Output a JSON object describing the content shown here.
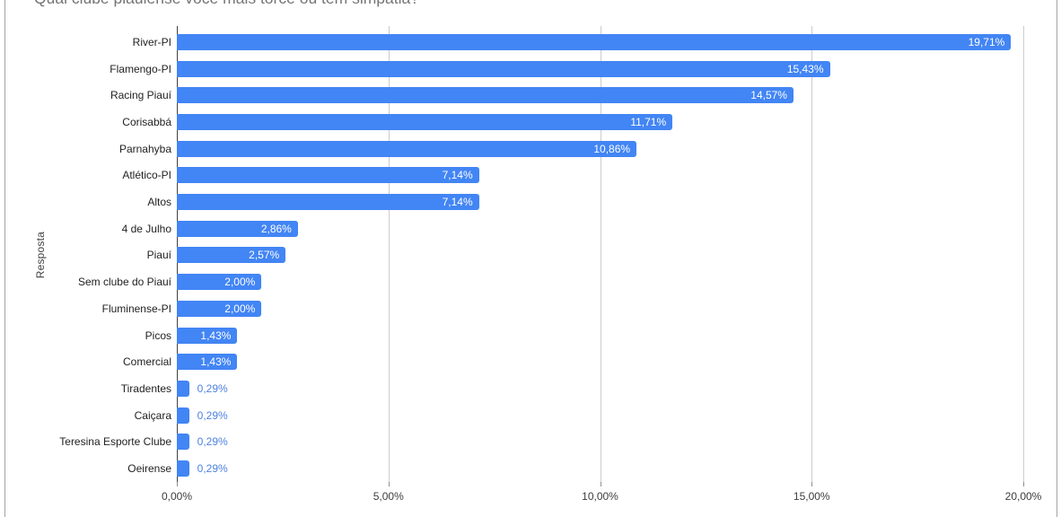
{
  "chart_data": {
    "type": "bar",
    "orientation": "horizontal",
    "title": "Qual clube piauiense você mais torce ou tem simpatia?",
    "ylabel": "Resposta",
    "xlabel": "",
    "xlim": [
      0,
      20
    ],
    "grid": true,
    "legend_position": "none",
    "x_ticks": [
      {
        "value": 0,
        "label": "0,00%"
      },
      {
        "value": 5,
        "label": "5,00%"
      },
      {
        "value": 10,
        "label": "10,00%"
      },
      {
        "value": 15,
        "label": "15,00%"
      },
      {
        "value": 20,
        "label": "20,00%"
      }
    ],
    "bars": [
      {
        "category": "River-PI",
        "value": 19.71,
        "label": "19,71%"
      },
      {
        "category": "Flamengo-PI",
        "value": 15.43,
        "label": "15,43%"
      },
      {
        "category": "Racing Piauí",
        "value": 14.57,
        "label": "14,57%"
      },
      {
        "category": "Corisabbá",
        "value": 11.71,
        "label": "11,71%"
      },
      {
        "category": "Parnahyba",
        "value": 10.86,
        "label": "10,86%"
      },
      {
        "category": "Atlético-PI",
        "value": 7.14,
        "label": "7,14%"
      },
      {
        "category": "Altos",
        "value": 7.14,
        "label": "7,14%"
      },
      {
        "category": "4 de Julho",
        "value": 2.86,
        "label": "2,86%"
      },
      {
        "category": "Piauí",
        "value": 2.57,
        "label": "2,57%"
      },
      {
        "category": "Sem clube do Piauí",
        "value": 2.0,
        "label": "2,00%"
      },
      {
        "category": "Fluminense-PI",
        "value": 2.0,
        "label": "2,00%"
      },
      {
        "category": "Picos",
        "value": 1.43,
        "label": "1,43%"
      },
      {
        "category": "Comercial",
        "value": 1.43,
        "label": "1,43%"
      },
      {
        "category": "Tiradentes",
        "value": 0.29,
        "label": "0,29%"
      },
      {
        "category": "Caiçara",
        "value": 0.29,
        "label": "0,29%"
      },
      {
        "category": "Teresina Esporte Clube",
        "value": 0.29,
        "label": "0,29%"
      },
      {
        "category": "Oeirense",
        "value": 0.29,
        "label": "0,29%"
      }
    ],
    "colors": {
      "bar": "#4285f4",
      "label_inside": "#ffffff",
      "label_outside": "#4e82e0",
      "gridline": "#cccccc",
      "baseline": "#424242"
    }
  }
}
